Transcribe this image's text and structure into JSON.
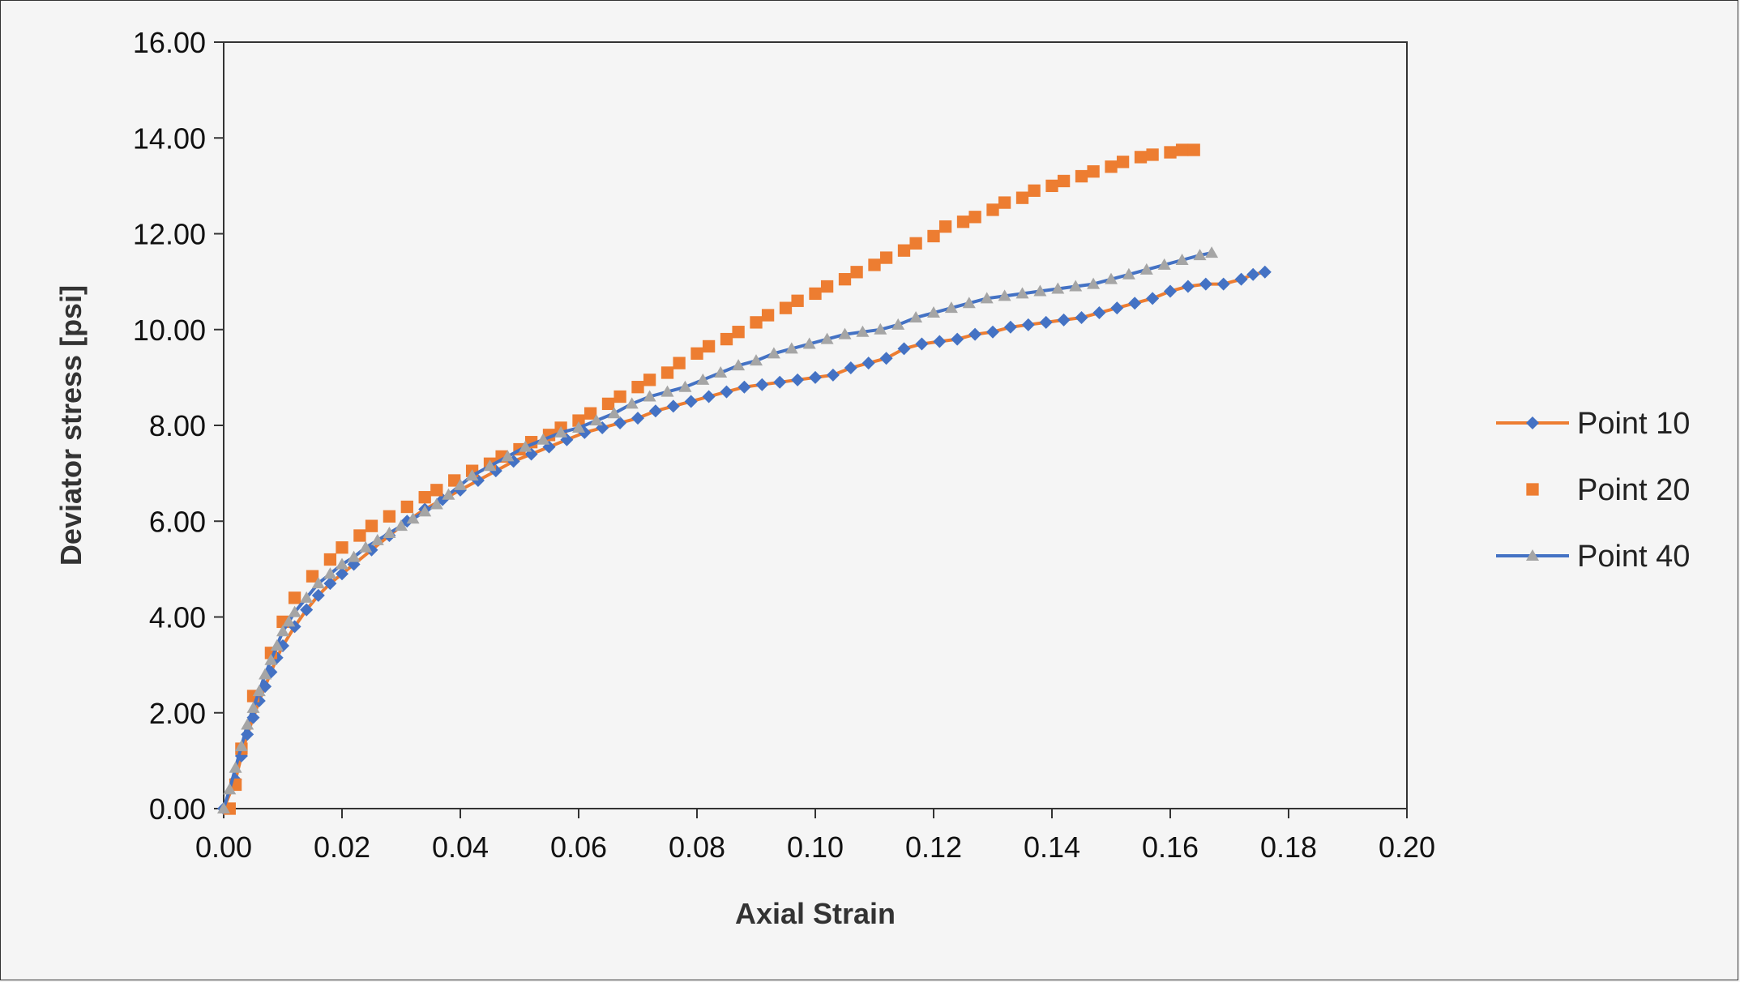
{
  "chart_data": {
    "type": "scatter",
    "title": "",
    "xlabel": "Axial Strain",
    "ylabel": "Deviator stress [psi]",
    "xlim": [
      0,
      0.2
    ],
    "ylim": [
      0,
      16
    ],
    "x_ticks": [
      "0.00",
      "0.02",
      "0.04",
      "0.06",
      "0.08",
      "0.10",
      "0.12",
      "0.14",
      "0.16",
      "0.18",
      "0.20"
    ],
    "y_ticks": [
      "0.00",
      "2.00",
      "4.00",
      "6.00",
      "8.00",
      "10.00",
      "12.00",
      "14.00",
      "16.00"
    ],
    "grid": false,
    "legend_position": "right",
    "series": [
      {
        "name": "Point 10",
        "marker": "diamond",
        "marker_color": "#4472c4",
        "line": true,
        "line_color": "#ed7d31",
        "points": [
          [
            0.0,
            0.0
          ],
          [
            0.002,
            0.6
          ],
          [
            0.003,
            1.1
          ],
          [
            0.004,
            1.55
          ],
          [
            0.005,
            1.9
          ],
          [
            0.006,
            2.25
          ],
          [
            0.007,
            2.55
          ],
          [
            0.008,
            2.85
          ],
          [
            0.009,
            3.15
          ],
          [
            0.01,
            3.4
          ],
          [
            0.012,
            3.8
          ],
          [
            0.014,
            4.15
          ],
          [
            0.016,
            4.45
          ],
          [
            0.018,
            4.7
          ],
          [
            0.02,
            4.9
          ],
          [
            0.022,
            5.1
          ],
          [
            0.025,
            5.4
          ],
          [
            0.028,
            5.7
          ],
          [
            0.031,
            6.0
          ],
          [
            0.034,
            6.25
          ],
          [
            0.037,
            6.45
          ],
          [
            0.04,
            6.65
          ],
          [
            0.043,
            6.85
          ],
          [
            0.046,
            7.05
          ],
          [
            0.049,
            7.25
          ],
          [
            0.052,
            7.4
          ],
          [
            0.055,
            7.55
          ],
          [
            0.058,
            7.7
          ],
          [
            0.061,
            7.85
          ],
          [
            0.064,
            7.95
          ],
          [
            0.067,
            8.05
          ],
          [
            0.07,
            8.15
          ],
          [
            0.073,
            8.3
          ],
          [
            0.076,
            8.4
          ],
          [
            0.079,
            8.5
          ],
          [
            0.082,
            8.6
          ],
          [
            0.085,
            8.7
          ],
          [
            0.088,
            8.8
          ],
          [
            0.091,
            8.85
          ],
          [
            0.094,
            8.9
          ],
          [
            0.097,
            8.95
          ],
          [
            0.1,
            9.0
          ],
          [
            0.103,
            9.05
          ],
          [
            0.106,
            9.2
          ],
          [
            0.109,
            9.3
          ],
          [
            0.112,
            9.4
          ],
          [
            0.115,
            9.6
          ],
          [
            0.118,
            9.7
          ],
          [
            0.121,
            9.75
          ],
          [
            0.124,
            9.8
          ],
          [
            0.127,
            9.9
          ],
          [
            0.13,
            9.95
          ],
          [
            0.133,
            10.05
          ],
          [
            0.136,
            10.1
          ],
          [
            0.139,
            10.15
          ],
          [
            0.142,
            10.2
          ],
          [
            0.145,
            10.25
          ],
          [
            0.148,
            10.35
          ],
          [
            0.151,
            10.45
          ],
          [
            0.154,
            10.55
          ],
          [
            0.157,
            10.65
          ],
          [
            0.16,
            10.8
          ],
          [
            0.163,
            10.9
          ],
          [
            0.166,
            10.95
          ],
          [
            0.169,
            10.95
          ],
          [
            0.172,
            11.05
          ],
          [
            0.174,
            11.15
          ],
          [
            0.176,
            11.2
          ]
        ]
      },
      {
        "name": "Point 20",
        "marker": "square",
        "marker_color": "#ed7d31",
        "line": false,
        "line_color": "",
        "points": [
          [
            0.001,
            0.0
          ],
          [
            0.002,
            0.5
          ],
          [
            0.003,
            1.25
          ],
          [
            0.005,
            2.35
          ],
          [
            0.008,
            3.25
          ],
          [
            0.01,
            3.9
          ],
          [
            0.012,
            4.4
          ],
          [
            0.015,
            4.85
          ],
          [
            0.018,
            5.2
          ],
          [
            0.02,
            5.45
          ],
          [
            0.023,
            5.7
          ],
          [
            0.025,
            5.9
          ],
          [
            0.028,
            6.1
          ],
          [
            0.031,
            6.3
          ],
          [
            0.034,
            6.5
          ],
          [
            0.036,
            6.65
          ],
          [
            0.039,
            6.85
          ],
          [
            0.042,
            7.05
          ],
          [
            0.045,
            7.2
          ],
          [
            0.047,
            7.35
          ],
          [
            0.05,
            7.5
          ],
          [
            0.052,
            7.65
          ],
          [
            0.055,
            7.8
          ],
          [
            0.057,
            7.95
          ],
          [
            0.06,
            8.1
          ],
          [
            0.062,
            8.25
          ],
          [
            0.065,
            8.45
          ],
          [
            0.067,
            8.6
          ],
          [
            0.07,
            8.8
          ],
          [
            0.072,
            8.95
          ],
          [
            0.075,
            9.1
          ],
          [
            0.077,
            9.3
          ],
          [
            0.08,
            9.5
          ],
          [
            0.082,
            9.65
          ],
          [
            0.085,
            9.8
          ],
          [
            0.087,
            9.95
          ],
          [
            0.09,
            10.15
          ],
          [
            0.092,
            10.3
          ],
          [
            0.095,
            10.45
          ],
          [
            0.097,
            10.6
          ],
          [
            0.1,
            10.75
          ],
          [
            0.102,
            10.9
          ],
          [
            0.105,
            11.05
          ],
          [
            0.107,
            11.2
          ],
          [
            0.11,
            11.35
          ],
          [
            0.112,
            11.5
          ],
          [
            0.115,
            11.65
          ],
          [
            0.117,
            11.8
          ],
          [
            0.12,
            11.95
          ],
          [
            0.122,
            12.15
          ],
          [
            0.125,
            12.25
          ],
          [
            0.127,
            12.35
          ],
          [
            0.13,
            12.5
          ],
          [
            0.132,
            12.65
          ],
          [
            0.135,
            12.75
          ],
          [
            0.137,
            12.9
          ],
          [
            0.14,
            13.0
          ],
          [
            0.142,
            13.1
          ],
          [
            0.145,
            13.2
          ],
          [
            0.147,
            13.3
          ],
          [
            0.15,
            13.4
          ],
          [
            0.152,
            13.5
          ],
          [
            0.155,
            13.6
          ],
          [
            0.157,
            13.65
          ],
          [
            0.16,
            13.7
          ],
          [
            0.162,
            13.75
          ],
          [
            0.164,
            13.75
          ]
        ]
      },
      {
        "name": "Point 40",
        "marker": "triangle",
        "marker_color": "#a5a5a5",
        "line": true,
        "line_color": "#4472c4",
        "points": [
          [
            0.0,
            0.0
          ],
          [
            0.001,
            0.4
          ],
          [
            0.002,
            0.85
          ],
          [
            0.003,
            1.3
          ],
          [
            0.004,
            1.75
          ],
          [
            0.005,
            2.1
          ],
          [
            0.006,
            2.45
          ],
          [
            0.007,
            2.8
          ],
          [
            0.008,
            3.1
          ],
          [
            0.009,
            3.4
          ],
          [
            0.01,
            3.7
          ],
          [
            0.011,
            3.9
          ],
          [
            0.012,
            4.1
          ],
          [
            0.014,
            4.4
          ],
          [
            0.016,
            4.7
          ],
          [
            0.018,
            4.9
          ],
          [
            0.02,
            5.1
          ],
          [
            0.022,
            5.25
          ],
          [
            0.024,
            5.45
          ],
          [
            0.026,
            5.6
          ],
          [
            0.028,
            5.75
          ],
          [
            0.03,
            5.9
          ],
          [
            0.032,
            6.05
          ],
          [
            0.034,
            6.2
          ],
          [
            0.036,
            6.35
          ],
          [
            0.038,
            6.55
          ],
          [
            0.04,
            6.75
          ],
          [
            0.042,
            6.95
          ],
          [
            0.045,
            7.15
          ],
          [
            0.048,
            7.35
          ],
          [
            0.051,
            7.55
          ],
          [
            0.054,
            7.7
          ],
          [
            0.057,
            7.85
          ],
          [
            0.06,
            7.95
          ],
          [
            0.063,
            8.1
          ],
          [
            0.066,
            8.25
          ],
          [
            0.069,
            8.45
          ],
          [
            0.072,
            8.6
          ],
          [
            0.075,
            8.7
          ],
          [
            0.078,
            8.8
          ],
          [
            0.081,
            8.95
          ],
          [
            0.084,
            9.1
          ],
          [
            0.087,
            9.25
          ],
          [
            0.09,
            9.35
          ],
          [
            0.093,
            9.5
          ],
          [
            0.096,
            9.6
          ],
          [
            0.099,
            9.7
          ],
          [
            0.102,
            9.8
          ],
          [
            0.105,
            9.9
          ],
          [
            0.108,
            9.95
          ],
          [
            0.111,
            10.0
          ],
          [
            0.114,
            10.1
          ],
          [
            0.117,
            10.25
          ],
          [
            0.12,
            10.35
          ],
          [
            0.123,
            10.45
          ],
          [
            0.126,
            10.55
          ],
          [
            0.129,
            10.65
          ],
          [
            0.132,
            10.7
          ],
          [
            0.135,
            10.75
          ],
          [
            0.138,
            10.8
          ],
          [
            0.141,
            10.85
          ],
          [
            0.144,
            10.9
          ],
          [
            0.147,
            10.95
          ],
          [
            0.15,
            11.05
          ],
          [
            0.153,
            11.15
          ],
          [
            0.156,
            11.25
          ],
          [
            0.159,
            11.35
          ],
          [
            0.162,
            11.45
          ],
          [
            0.165,
            11.55
          ],
          [
            0.167,
            11.6
          ]
        ]
      }
    ]
  }
}
